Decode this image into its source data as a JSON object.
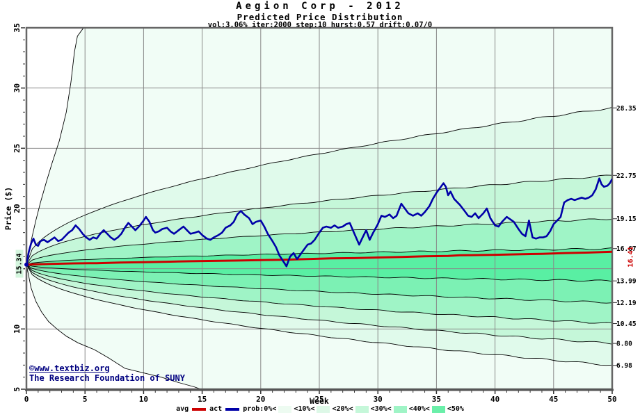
{
  "header": {
    "title": "Aegion Corp - 2012",
    "subtitle": "Predicted Price Distribution",
    "params": "vol:3.06% iter:2000 step:10 hurst:0.57 drift:0.07/0"
  },
  "watermark": {
    "line1": "©www.textbiz.org",
    "line2": "The Research Foundation of SUNY"
  },
  "legend": {
    "avg_label": "avg",
    "act_label": "act",
    "prob_labels": [
      "prob:0%<",
      "<10%<",
      "<20%<",
      "<30%<",
      "<40%<",
      "<50%"
    ],
    "swatch_colors": [
      "#EDFBF1",
      "#DDF8E7",
      "#C5F7D9",
      "#9FF4C6",
      "#6AEFA9"
    ],
    "avg_color": "#CC0000",
    "act_color": "#0000A8"
  },
  "chart_data": {
    "type": "line",
    "title": "Aegion Corp - 2012",
    "subtitle": "Predicted Price Distribution",
    "params": {
      "vol": "3.06%",
      "iter": 2000,
      "step": 10,
      "hurst": 0.57,
      "drift": "0.07/0"
    },
    "xlabel": "Week",
    "ylabel": "Price ($)",
    "xlim": [
      0,
      50
    ],
    "ylim": [
      5,
      35
    ],
    "xticks": [
      0,
      5,
      10,
      15,
      20,
      25,
      30,
      35,
      40,
      45,
      50
    ],
    "yticks": [
      5,
      10,
      15,
      20,
      25,
      30,
      35
    ],
    "grid": true,
    "start_price": 15.34,
    "start_label": "15.34",
    "avg_end": 16.41,
    "avg_end_label": "16.41",
    "fan_endpoints": [
      28.35,
      22.75,
      19.15,
      16.67,
      13.99,
      12.19,
      10.45,
      8.8,
      6.98
    ],
    "fan_labels": [
      "28.35",
      "22.75",
      "19.15",
      "16.67",
      "13.99",
      "12.19",
      "10.45",
      "8.80",
      "6.98"
    ],
    "band_colors": {
      "p0": "#F1FDF6",
      "p10": "#E0FAEB",
      "p20": "#C5F7D9",
      "p30": "#9FF4C6",
      "p40": "#7CF1B4",
      "p50": "#59EFA3"
    },
    "envelope_upper": [
      [
        0,
        15.34
      ],
      [
        0.4,
        17.3
      ],
      [
        0.8,
        19.0
      ],
      [
        1.2,
        20.5
      ],
      [
        1.7,
        22.2
      ],
      [
        2.2,
        23.8
      ],
      [
        2.8,
        25.6
      ],
      [
        3.4,
        28.0
      ],
      [
        3.8,
        30.5
      ],
      [
        4.1,
        33.0
      ],
      [
        4.35,
        34.3
      ],
      [
        4.8,
        34.9
      ],
      [
        5.3,
        35.3
      ]
    ],
    "envelope_lower": [
      [
        0,
        15.34
      ],
      [
        0.4,
        13.4
      ],
      [
        0.8,
        12.3
      ],
      [
        1.3,
        11.4
      ],
      [
        1.9,
        10.6
      ],
      [
        2.6,
        10.0
      ],
      [
        3.4,
        9.4
      ],
      [
        4.4,
        8.85
      ],
      [
        5.8,
        8.28
      ],
      [
        7,
        7.6
      ],
      [
        8.4,
        6.73
      ],
      [
        10,
        6.35
      ],
      [
        11.5,
        6.0
      ],
      [
        13,
        5.55
      ],
      [
        14.3,
        5.2
      ],
      [
        15.2,
        4.9
      ]
    ],
    "avg_series": [
      [
        0,
        15.34
      ],
      [
        2,
        15.4
      ],
      [
        4,
        15.44
      ],
      [
        6,
        15.46
      ],
      [
        8,
        15.52
      ],
      [
        10,
        15.54
      ],
      [
        12,
        15.58
      ],
      [
        14,
        15.62
      ],
      [
        16,
        15.65
      ],
      [
        18,
        15.68
      ],
      [
        20,
        15.72
      ],
      [
        22,
        15.74
      ],
      [
        24,
        15.8
      ],
      [
        26,
        15.86
      ],
      [
        28,
        15.88
      ],
      [
        30,
        15.93
      ],
      [
        32,
        15.98
      ],
      [
        34,
        16.03
      ],
      [
        36,
        16.06
      ],
      [
        37,
        16.12
      ],
      [
        38,
        16.13
      ],
      [
        40,
        16.16
      ],
      [
        42,
        16.2
      ],
      [
        44,
        16.24
      ],
      [
        46,
        16.3
      ],
      [
        48,
        16.34
      ],
      [
        50,
        16.41
      ]
    ],
    "act_series": [
      [
        0,
        15.34
      ],
      [
        0.2,
        16.4
      ],
      [
        0.4,
        17.1
      ],
      [
        0.6,
        17.5
      ],
      [
        0.8,
        17.0
      ],
      [
        1,
        16.9
      ],
      [
        1.2,
        17.3
      ],
      [
        1.5,
        17.4
      ],
      [
        1.8,
        17.2
      ],
      [
        2.1,
        17.4
      ],
      [
        2.4,
        17.6
      ],
      [
        2.7,
        17.3
      ],
      [
        3,
        17.4
      ],
      [
        3.3,
        17.7
      ],
      [
        3.6,
        18.0
      ],
      [
        3.9,
        18.2
      ],
      [
        4.2,
        18.6
      ],
      [
        4.5,
        18.3
      ],
      [
        4.8,
        17.9
      ],
      [
        5.1,
        17.6
      ],
      [
        5.4,
        17.4
      ],
      [
        5.7,
        17.6
      ],
      [
        6,
        17.5
      ],
      [
        6.3,
        17.9
      ],
      [
        6.6,
        18.2
      ],
      [
        6.9,
        17.9
      ],
      [
        7.2,
        17.6
      ],
      [
        7.5,
        17.4
      ],
      [
        7.8,
        17.6
      ],
      [
        8.1,
        17.9
      ],
      [
        8.4,
        18.4
      ],
      [
        8.7,
        18.8
      ],
      [
        9,
        18.5
      ],
      [
        9.3,
        18.2
      ],
      [
        9.6,
        18.5
      ],
      [
        10,
        19.0
      ],
      [
        10.2,
        19.3
      ],
      [
        10.5,
        18.9
      ],
      [
        10.8,
        18.2
      ],
      [
        11,
        18.0
      ],
      [
        11.3,
        18.1
      ],
      [
        11.6,
        18.3
      ],
      [
        12,
        18.4
      ],
      [
        12.3,
        18.1
      ],
      [
        12.6,
        17.9
      ],
      [
        13,
        18.2
      ],
      [
        13.4,
        18.5
      ],
      [
        13.7,
        18.2
      ],
      [
        14,
        17.9
      ],
      [
        14.4,
        18.0
      ],
      [
        14.7,
        18.1
      ],
      [
        15,
        17.8
      ],
      [
        15.4,
        17.5
      ],
      [
        15.7,
        17.4
      ],
      [
        16,
        17.6
      ],
      [
        16.4,
        17.8
      ],
      [
        16.7,
        18.0
      ],
      [
        17,
        18.4
      ],
      [
        17.4,
        18.6
      ],
      [
        17.7,
        18.9
      ],
      [
        18,
        19.5
      ],
      [
        18.3,
        19.8
      ],
      [
        18.6,
        19.5
      ],
      [
        19,
        19.2
      ],
      [
        19.3,
        18.7
      ],
      [
        19.6,
        18.9
      ],
      [
        20,
        19.0
      ],
      [
        20.3,
        18.5
      ],
      [
        20.6,
        17.9
      ],
      [
        21,
        17.3
      ],
      [
        21.3,
        16.8
      ],
      [
        21.6,
        16.1
      ],
      [
        22,
        15.5
      ],
      [
        22.2,
        15.2
      ],
      [
        22.5,
        16.0
      ],
      [
        22.8,
        16.3
      ],
      [
        23.1,
        15.8
      ],
      [
        23.4,
        16.2
      ],
      [
        23.7,
        16.6
      ],
      [
        24,
        17.0
      ],
      [
        24.3,
        17.1
      ],
      [
        24.6,
        17.4
      ],
      [
        25,
        18.0
      ],
      [
        25.3,
        18.4
      ],
      [
        25.6,
        18.5
      ],
      [
        26,
        18.4
      ],
      [
        26.3,
        18.6
      ],
      [
        26.6,
        18.4
      ],
      [
        27,
        18.5
      ],
      [
        27.3,
        18.7
      ],
      [
        27.6,
        18.8
      ],
      [
        28,
        17.9
      ],
      [
        28.4,
        17.0
      ],
      [
        28.7,
        17.6
      ],
      [
        29,
        18.2
      ],
      [
        29.3,
        17.4
      ],
      [
        29.6,
        18.0
      ],
      [
        30,
        18.7
      ],
      [
        30.3,
        19.4
      ],
      [
        30.6,
        19.3
      ],
      [
        31,
        19.5
      ],
      [
        31.3,
        19.2
      ],
      [
        31.6,
        19.4
      ],
      [
        32,
        20.4
      ],
      [
        32.3,
        20.0
      ],
      [
        32.6,
        19.6
      ],
      [
        33,
        19.4
      ],
      [
        33.4,
        19.6
      ],
      [
        33.7,
        19.4
      ],
      [
        34,
        19.7
      ],
      [
        34.4,
        20.2
      ],
      [
        34.7,
        20.8
      ],
      [
        35,
        21.3
      ],
      [
        35.3,
        21.7
      ],
      [
        35.6,
        22.1
      ],
      [
        35.8,
        21.8
      ],
      [
        36,
        21.1
      ],
      [
        36.2,
        21.4
      ],
      [
        36.5,
        20.8
      ],
      [
        36.8,
        20.5
      ],
      [
        37,
        20.3
      ],
      [
        37.4,
        19.8
      ],
      [
        37.7,
        19.4
      ],
      [
        38,
        19.3
      ],
      [
        38.3,
        19.6
      ],
      [
        38.6,
        19.2
      ],
      [
        39,
        19.6
      ],
      [
        39.3,
        20.0
      ],
      [
        39.6,
        19.2
      ],
      [
        40,
        18.6
      ],
      [
        40.3,
        18.5
      ],
      [
        40.6,
        18.9
      ],
      [
        41,
        19.3
      ],
      [
        41.3,
        19.1
      ],
      [
        41.6,
        18.9
      ],
      [
        42,
        18.3
      ],
      [
        42.3,
        17.9
      ],
      [
        42.6,
        17.7
      ],
      [
        42.9,
        19.0
      ],
      [
        43.2,
        17.6
      ],
      [
        43.5,
        17.5
      ],
      [
        43.8,
        17.6
      ],
      [
        44.1,
        17.6
      ],
      [
        44.4,
        17.7
      ],
      [
        44.7,
        18.1
      ],
      [
        45,
        18.7
      ],
      [
        45.3,
        19.0
      ],
      [
        45.6,
        19.3
      ],
      [
        45.9,
        20.5
      ],
      [
        46.2,
        20.7
      ],
      [
        46.5,
        20.8
      ],
      [
        46.8,
        20.7
      ],
      [
        47.1,
        20.8
      ],
      [
        47.4,
        20.9
      ],
      [
        47.7,
        20.8
      ],
      [
        48,
        20.9
      ],
      [
        48.3,
        21.1
      ],
      [
        48.6,
        21.6
      ],
      [
        48.9,
        22.5
      ],
      [
        49.1,
        22.0
      ],
      [
        49.3,
        21.8
      ],
      [
        49.6,
        21.9
      ],
      [
        49.8,
        22.1
      ],
      [
        50,
        22.45
      ]
    ]
  },
  "colors": {
    "grid": "#888888",
    "frame": "#666666",
    "quantile_line": "#000000",
    "avg_line": "#CC0000",
    "act_line": "#0000A8",
    "navy_text": "#000080"
  }
}
